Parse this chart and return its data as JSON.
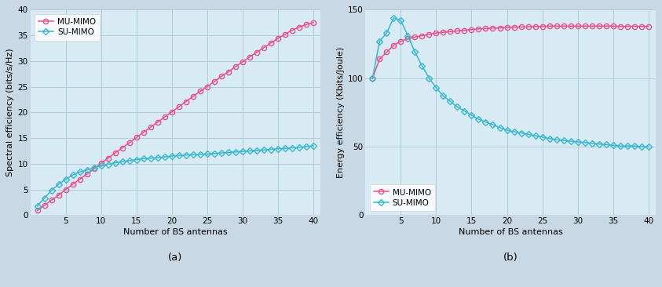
{
  "x": [
    1,
    2,
    3,
    4,
    5,
    6,
    7,
    8,
    9,
    10,
    11,
    12,
    13,
    14,
    15,
    16,
    17,
    18,
    19,
    20,
    21,
    22,
    23,
    24,
    25,
    26,
    27,
    28,
    29,
    30,
    31,
    32,
    33,
    34,
    35,
    36,
    37,
    38,
    39,
    40
  ],
  "se_mu": [
    0.9,
    1.9,
    2.9,
    3.9,
    5.0,
    6.0,
    7.0,
    8.0,
    9.0,
    10.1,
    11.1,
    12.1,
    13.1,
    14.1,
    15.1,
    16.1,
    17.1,
    18.1,
    19.1,
    20.1,
    21.1,
    22.1,
    23.1,
    24.1,
    25.0,
    26.0,
    27.0,
    27.9,
    28.9,
    29.8,
    30.8,
    31.7,
    32.6,
    33.5,
    34.4,
    35.2,
    36.0,
    36.6,
    37.1,
    37.5
  ],
  "se_su": [
    1.8,
    3.3,
    4.8,
    6.0,
    7.0,
    7.8,
    8.4,
    8.8,
    9.2,
    9.6,
    9.9,
    10.2,
    10.4,
    10.6,
    10.8,
    11.0,
    11.1,
    11.2,
    11.35,
    11.5,
    11.6,
    11.7,
    11.8,
    11.85,
    11.9,
    12.0,
    12.1,
    12.2,
    12.3,
    12.4,
    12.5,
    12.6,
    12.7,
    12.8,
    12.9,
    13.0,
    13.1,
    13.2,
    13.35,
    13.5
  ],
  "ee_mu": [
    100,
    114,
    119,
    124,
    127,
    129,
    130,
    131,
    132,
    133,
    133.5,
    134,
    134.5,
    135,
    135.5,
    136,
    136.2,
    136.5,
    136.7,
    137,
    137.2,
    137.4,
    137.5,
    137.7,
    137.8,
    138,
    138,
    138,
    138,
    138,
    138,
    138,
    138,
    138,
    138,
    137.8,
    137.8,
    137.8,
    137.8,
    137.8
  ],
  "ee_su": [
    100,
    127,
    133,
    144,
    142,
    131,
    119,
    109,
    100,
    93,
    87,
    83,
    79,
    76,
    73,
    70,
    68,
    66,
    64,
    62,
    61,
    60,
    59,
    58,
    57,
    56,
    55,
    54.5,
    54,
    53.5,
    53,
    52.5,
    52,
    51.5,
    51,
    50.5,
    50.5,
    50.5,
    50,
    50
  ],
  "color_mu": "#e8508a",
  "color_su": "#3ab8cc",
  "bg_color": "#d8eaf4",
  "fig_bg": "#c8d8e4",
  "grid_color": "#b0ccd8",
  "xlabel": "Number of BS antennas",
  "ylabel_a": "Spectral efficiency (bits/s/Hz)",
  "ylabel_b": "Energy efficiency (Kbits/Joule)",
  "label_a": "(a)",
  "label_b": "(b)",
  "legend_mu": "MU-MIMO",
  "legend_su": "SU-MIMO",
  "xlim_a": [
    0,
    41
  ],
  "xlim_b": [
    0,
    41
  ],
  "ylim_a": [
    0,
    40
  ],
  "ylim_b": [
    0,
    150
  ],
  "xticks": [
    5,
    10,
    15,
    20,
    25,
    30,
    35,
    40
  ],
  "yticks_a": [
    0,
    5,
    10,
    15,
    20,
    25,
    30,
    35,
    40
  ],
  "yticks_b": [
    0,
    50,
    100,
    150
  ],
  "tick_fontsize": 7.5,
  "label_fontsize": 8.0,
  "legend_fontsize": 7.5,
  "caption_fontsize": 9.5
}
